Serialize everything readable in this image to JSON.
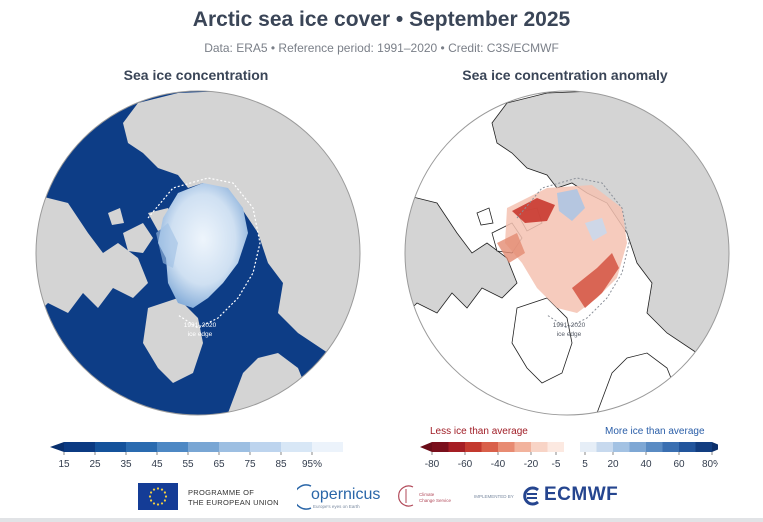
{
  "title": "Arctic sea ice cover • September 2025",
  "subtitle": "Data: ERA5 • Reference period: 1991–2020 • Credit: C3S/ECMWF",
  "panels": {
    "left": {
      "title": "Sea ice concentration",
      "edge_label_line1": "1991–2020",
      "edge_label_line2": "ice edge"
    },
    "right": {
      "title": "Sea ice concentration anomaly",
      "edge_label_line1": "1991–2020",
      "edge_label_line2": "ice edge"
    }
  },
  "colorbar_left": {
    "ticks": [
      "15",
      "25",
      "35",
      "45",
      "55",
      "65",
      "75",
      "85",
      "95%"
    ],
    "colors": [
      "#0b3a82",
      "#14529b",
      "#2a6bb0",
      "#4d88c4",
      "#79a6d4",
      "#9dbfe2",
      "#bdd4ee",
      "#d8e7f6",
      "#ecf3fb"
    ]
  },
  "colorbar_right": {
    "less_label": "Less ice than average",
    "more_label": "More ice than average",
    "ticks": [
      "-80",
      "-60",
      "-40",
      "-20",
      "-5",
      "5",
      "20",
      "40",
      "60",
      "80%"
    ],
    "neg_colors": [
      "#7a0f1c",
      "#a51e24",
      "#c3392e",
      "#d9604a",
      "#e88b72",
      "#f2b39d",
      "#f8d4c6",
      "#fce9e1"
    ],
    "pos_colors": [
      "#e6eef7",
      "#c7d9ee",
      "#a3c2e3",
      "#7ea7d4",
      "#5a8bc3",
      "#3a6fb1",
      "#22559c",
      "#123d80"
    ]
  },
  "map_colors": {
    "ocean_left": "#0d3d86",
    "land": "#d4d4d4",
    "ocean_right": "#ffffff",
    "edge_line": "#ffffff",
    "edge_line_right": "#8a8f98"
  },
  "footer": {
    "eu_line1": "PROGRAMME OF",
    "eu_line2": "THE EUROPEAN UNION",
    "copernicus": "opernicus",
    "copernicus_sub": "Europe's eyes on Earth",
    "c3s_line1": "Climate",
    "c3s_line2": "Change Service",
    "implemented": "IMPLEMENTED BY",
    "ecmwf": "ECMWF"
  },
  "icons": [
    "eu-flag-icon",
    "copernicus-logo-icon",
    "c3s-logo-icon",
    "ecmwf-logo-icon"
  ]
}
